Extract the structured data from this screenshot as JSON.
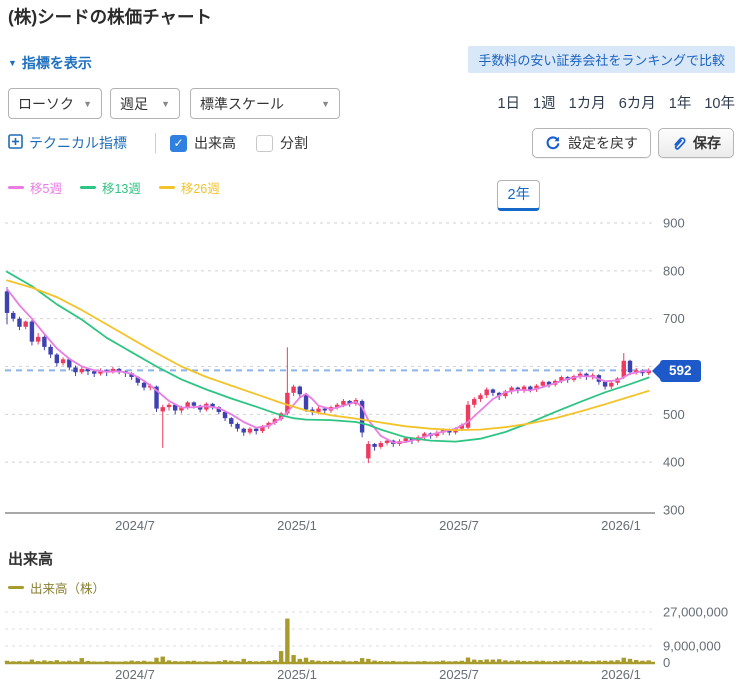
{
  "page": {
    "title": "(株)シードの株価チャート"
  },
  "toolbar": {
    "indicator_toggle": "指標を表示",
    "promo_banner": "手数料の安い証券会社をランキングで比較",
    "selects": [
      {
        "id": "chart-type",
        "value": "ローソク"
      },
      {
        "id": "interval",
        "value": "週足"
      },
      {
        "id": "scale",
        "value": "標準スケール"
      }
    ],
    "ranges": [
      "1日",
      "1週",
      "1カ月",
      "6カ月",
      "1年",
      "2年",
      "10年"
    ],
    "selected_range": "2年",
    "technical_indicator": "テクニカル指標",
    "checkboxes": [
      {
        "label": "出来高",
        "checked": true
      },
      {
        "label": "分割",
        "checked": false
      }
    ],
    "reset_button": "設定を戻す",
    "save_button": "保存"
  },
  "volume_section": {
    "heading": "出来高"
  },
  "icons": {
    "indicator_toggle": "triangle-down-icon",
    "selects": "chevron-down-icon",
    "technical": "boxed-plus-icon",
    "reset": "refresh-icon",
    "save": "paperclip-icon"
  },
  "colors": {
    "up_candle": "#ee3a5f",
    "down_candle": "#3e41b0",
    "grid": "#d2d2d2",
    "axis": "#8c8c8c",
    "current_line": "#8cb4e8",
    "badge": "#1d59c9",
    "link_blue": "#1d6fc0",
    "checkbox_blue": "#2f80e0"
  },
  "chart_data": [
    {
      "type": "candlestick",
      "title": "(株)シードの株価チャート",
      "interval": "週足",
      "x_ticks": [
        "2024/7",
        "2025/1",
        "2025/7",
        "2026/1"
      ],
      "ylim": [
        300,
        900
      ],
      "y_ticks": [
        300,
        400,
        500,
        600,
        700,
        800,
        900
      ],
      "current_price": 592,
      "grid": true,
      "candles_format": [
        "open",
        "high",
        "low",
        "close"
      ],
      "candles": [
        [
          757,
          766,
          688,
          712
        ],
        [
          712,
          716,
          694,
          700
        ],
        [
          700,
          704,
          676,
          683
        ],
        [
          683,
          696,
          678,
          694
        ],
        [
          694,
          697,
          644,
          652
        ],
        [
          652,
          670,
          646,
          662
        ],
        [
          662,
          665,
          634,
          641
        ],
        [
          641,
          646,
          618,
          625
        ],
        [
          625,
          628,
          600,
          607
        ],
        [
          607,
          619,
          602,
          615
        ],
        [
          615,
          616,
          592,
          598
        ],
        [
          598,
          602,
          580,
          588
        ],
        [
          588,
          599,
          584,
          595
        ],
        [
          595,
          598,
          582,
          590
        ],
        [
          590,
          593,
          578,
          585
        ],
        [
          585,
          596,
          581,
          592
        ],
        [
          592,
          594,
          580,
          588
        ],
        [
          588,
          599,
          585,
          595
        ],
        [
          595,
          597,
          584,
          590
        ],
        [
          590,
          592,
          578,
          586
        ],
        [
          586,
          588,
          572,
          578
        ],
        [
          578,
          580,
          560,
          566
        ],
        [
          566,
          570,
          550,
          556
        ],
        [
          556,
          564,
          550,
          560
        ],
        [
          558,
          560,
          505,
          512
        ],
        [
          506,
          520,
          430,
          515
        ],
        [
          515,
          524,
          508,
          520
        ],
        [
          520,
          522,
          500,
          508
        ],
        [
          508,
          518,
          502,
          515
        ],
        [
          515,
          528,
          510,
          525
        ],
        [
          525,
          527,
          512,
          518
        ],
        [
          518,
          520,
          504,
          510
        ],
        [
          510,
          525,
          506,
          522
        ],
        [
          522,
          524,
          510,
          515
        ],
        [
          515,
          517,
          500,
          505
        ],
        [
          505,
          507,
          486,
          492
        ],
        [
          492,
          494,
          474,
          480
        ],
        [
          480,
          483,
          464,
          470
        ],
        [
          470,
          472,
          455,
          462
        ],
        [
          462,
          473,
          458,
          470
        ],
        [
          470,
          471,
          458,
          465
        ],
        [
          465,
          478,
          461,
          475
        ],
        [
          475,
          485,
          470,
          482
        ],
        [
          482,
          493,
          478,
          490
        ],
        [
          490,
          505,
          486,
          502
        ],
        [
          502,
          640,
          498,
          545
        ],
        [
          545,
          562,
          538,
          558
        ],
        [
          558,
          560,
          535,
          542
        ],
        [
          542,
          545,
          505,
          510
        ],
        [
          510,
          515,
          498,
          505
        ],
        [
          505,
          516,
          500,
          512
        ],
        [
          512,
          514,
          500,
          508
        ],
        [
          508,
          518,
          503,
          515
        ],
        [
          515,
          524,
          510,
          520
        ],
        [
          520,
          532,
          515,
          528
        ],
        [
          528,
          530,
          516,
          522
        ],
        [
          522,
          534,
          518,
          530
        ],
        [
          528,
          531,
          452,
          462
        ],
        [
          408,
          444,
          398,
          438
        ],
        [
          438,
          440,
          424,
          432
        ],
        [
          432,
          444,
          428,
          440
        ],
        [
          440,
          449,
          435,
          445
        ],
        [
          445,
          447,
          432,
          438
        ],
        [
          438,
          448,
          434,
          444
        ],
        [
          444,
          454,
          440,
          450
        ],
        [
          450,
          452,
          438,
          445
        ],
        [
          445,
          456,
          441,
          452
        ],
        [
          452,
          463,
          448,
          460
        ],
        [
          460,
          462,
          449,
          455
        ],
        [
          455,
          466,
          451,
          462
        ],
        [
          462,
          471,
          457,
          468
        ],
        [
          468,
          470,
          456,
          462
        ],
        [
          462,
          473,
          458,
          470
        ],
        [
          470,
          481,
          465,
          478
        ],
        [
          472,
          528,
          468,
          520
        ],
        [
          520,
          536,
          514,
          532
        ],
        [
          532,
          544,
          526,
          540
        ],
        [
          540,
          556,
          534,
          552
        ],
        [
          552,
          554,
          538,
          545
        ],
        [
          545,
          547,
          530,
          538
        ],
        [
          538,
          551,
          533,
          548
        ],
        [
          548,
          559,
          542,
          556
        ],
        [
          556,
          558,
          544,
          550
        ],
        [
          550,
          561,
          545,
          558
        ],
        [
          558,
          560,
          546,
          552
        ],
        [
          552,
          563,
          547,
          560
        ],
        [
          560,
          571,
          555,
          568
        ],
        [
          568,
          570,
          556,
          562
        ],
        [
          562,
          573,
          558,
          570
        ],
        [
          570,
          581,
          565,
          578
        ],
        [
          578,
          580,
          566,
          572
        ],
        [
          572,
          583,
          568,
          580
        ],
        [
          580,
          589,
          574,
          585
        ],
        [
          585,
          587,
          572,
          578
        ],
        [
          578,
          586,
          573,
          582
        ],
        [
          582,
          584,
          562,
          568
        ],
        [
          568,
          570,
          552,
          558
        ],
        [
          558,
          569,
          553,
          566
        ],
        [
          566,
          578,
          561,
          575
        ],
        [
          578,
          628,
          574,
          612
        ],
        [
          612,
          614,
          582,
          588
        ],
        [
          588,
          597,
          583,
          592
        ],
        [
          592,
          594,
          580,
          586
        ],
        [
          586,
          596,
          582,
          592
        ]
      ],
      "series": [
        {
          "name": "移5週",
          "color": "#ea7ce2",
          "points": [
            [
              0,
              762
            ],
            [
              2,
              728
            ],
            [
              4,
              700
            ],
            [
              6,
              668
            ],
            [
              8,
              638
            ],
            [
              10,
              616
            ],
            [
              12,
              600
            ],
            [
              14,
              592
            ],
            [
              16,
              589
            ],
            [
              18,
              590
            ],
            [
              20,
              585
            ],
            [
              22,
              570
            ],
            [
              24,
              550
            ],
            [
              26,
              528
            ],
            [
              28,
              514
            ],
            [
              30,
              515
            ],
            [
              32,
              517
            ],
            [
              34,
              513
            ],
            [
              36,
              500
            ],
            [
              38,
              484
            ],
            [
              40,
              472
            ],
            [
              42,
              476
            ],
            [
              44,
              492
            ],
            [
              45,
              505
            ],
            [
              46,
              520
            ],
            [
              47,
              535
            ],
            [
              48,
              543
            ],
            [
              49,
              532
            ],
            [
              50,
              518
            ],
            [
              52,
              511
            ],
            [
              54,
              518
            ],
            [
              56,
              526
            ],
            [
              57,
              515
            ],
            [
              58,
              488
            ],
            [
              60,
              455
            ],
            [
              62,
              441
            ],
            [
              64,
              442
            ],
            [
              66,
              449
            ],
            [
              68,
              457
            ],
            [
              70,
              464
            ],
            [
              72,
              470
            ],
            [
              74,
              484
            ],
            [
              76,
              508
            ],
            [
              78,
              532
            ],
            [
              80,
              546
            ],
            [
              82,
              551
            ],
            [
              84,
              550
            ],
            [
              86,
              557
            ],
            [
              88,
              565
            ],
            [
              90,
              574
            ],
            [
              92,
              580
            ],
            [
              94,
              579
            ],
            [
              96,
              569
            ],
            [
              98,
              571
            ],
            [
              100,
              585
            ],
            [
              102,
              590
            ],
            [
              103,
              591
            ]
          ]
        },
        {
          "name": "移13週",
          "color": "#2ec483",
          "points": [
            [
              0,
              798
            ],
            [
              4,
              768
            ],
            [
              8,
              730
            ],
            [
              12,
              698
            ],
            [
              16,
              660
            ],
            [
              20,
              630
            ],
            [
              24,
              600
            ],
            [
              28,
              573
            ],
            [
              32,
              552
            ],
            [
              36,
              533
            ],
            [
              40,
              516
            ],
            [
              44,
              498
            ],
            [
              46,
              492
            ],
            [
              48,
              489
            ],
            [
              52,
              488
            ],
            [
              56,
              484
            ],
            [
              58,
              478
            ],
            [
              60,
              468
            ],
            [
              64,
              452
            ],
            [
              68,
              445
            ],
            [
              72,
              443
            ],
            [
              76,
              449
            ],
            [
              80,
              463
            ],
            [
              84,
              483
            ],
            [
              88,
              505
            ],
            [
              92,
              526
            ],
            [
              96,
              546
            ],
            [
              100,
              563
            ],
            [
              103,
              577
            ]
          ]
        },
        {
          "name": "移26週",
          "color": "#f4c32a",
          "points": [
            [
              0,
              780
            ],
            [
              4,
              765
            ],
            [
              8,
              745
            ],
            [
              12,
              718
            ],
            [
              16,
              688
            ],
            [
              20,
              658
            ],
            [
              24,
              628
            ],
            [
              28,
              600
            ],
            [
              32,
              578
            ],
            [
              36,
              560
            ],
            [
              40,
              542
            ],
            [
              44,
              524
            ],
            [
              48,
              508
            ],
            [
              52,
              498
            ],
            [
              56,
              491
            ],
            [
              60,
              483
            ],
            [
              64,
              475
            ],
            [
              68,
              470
            ],
            [
              72,
              467
            ],
            [
              76,
              468
            ],
            [
              80,
              473
            ],
            [
              84,
              481
            ],
            [
              88,
              492
            ],
            [
              92,
              506
            ],
            [
              96,
              521
            ],
            [
              100,
              537
            ],
            [
              103,
              549
            ]
          ]
        }
      ]
    },
    {
      "type": "bar",
      "name": "出来高（株）",
      "color": "#a89b2d",
      "x_ticks": [
        "2024/7",
        "2025/1",
        "2025/7",
        "2026/1"
      ],
      "y_ticks": [
        0,
        9000000,
        27000000
      ],
      "ylim": [
        0,
        36000000
      ],
      "values": [
        1200000,
        900000,
        1000000,
        800000,
        1800000,
        1000000,
        1400000,
        1100000,
        1500000,
        900000,
        1200000,
        1000000,
        2600000,
        1100000,
        800000,
        700000,
        1000000,
        800000,
        700000,
        900000,
        1300000,
        1000000,
        1200000,
        800000,
        2800000,
        3400000,
        1400000,
        1000000,
        900000,
        1100000,
        1200000,
        800000,
        900000,
        700000,
        1000000,
        1500000,
        1200000,
        1000000,
        2200000,
        1100000,
        900000,
        1000000,
        1200000,
        1500000,
        6300000,
        23500000,
        4200000,
        2200000,
        2800000,
        1500000,
        1200000,
        1000000,
        1200000,
        1000000,
        1300000,
        900000,
        1100000,
        2600000,
        2200000,
        1300000,
        1000000,
        900000,
        1100000,
        800000,
        900000,
        700000,
        900000,
        1000000,
        800000,
        900000,
        1300000,
        900000,
        1000000,
        1200000,
        2900000,
        1800000,
        1600000,
        1900000,
        1800000,
        2000000,
        1400000,
        1200000,
        1400000,
        1100000,
        1000000,
        1200000,
        1200000,
        900000,
        1100000,
        1300000,
        1600000,
        1200000,
        1400000,
        1000000,
        1100000,
        1300000,
        1200000,
        1300000,
        1500000,
        2800000,
        2200000,
        1600000,
        1200000,
        1400000
      ]
    }
  ]
}
